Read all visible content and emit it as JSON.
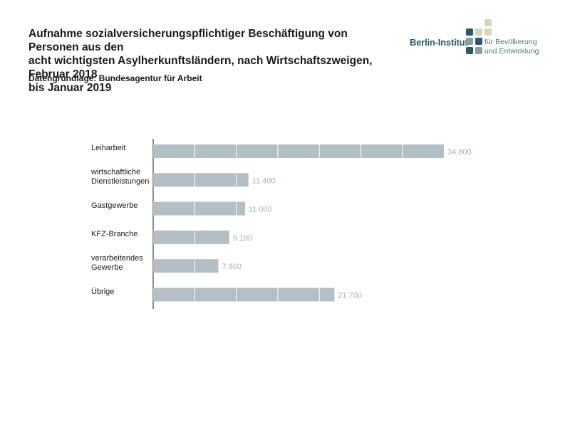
{
  "header": {
    "title_lines": [
      "Aufnahme sozialversicherungspflichtiger Beschäftigung von Personen aus den",
      "acht wichtigsten Asylherkunftsländern, nach Wirtschaftszweigen, Februar 2018",
      "bis Januar 2019"
    ],
    "subtitle": "Datengrundlage: Bundesagentur für Arbeit"
  },
  "logo": {
    "name": "Berlin-Institut",
    "tagline_lines": [
      "für Bevölkerung",
      "und Entwicklung"
    ],
    "colors": {
      "dark": "#2a5a66",
      "grey": "#8a9ea4",
      "light": "#d4d8b6"
    }
  },
  "chart_data": {
    "type": "bar",
    "orientation": "horizontal",
    "categories": [
      [
        "Leiharbeit"
      ],
      [
        "wirtschaftliche",
        "Dienstleistungen"
      ],
      [
        "Gastgewerbe"
      ],
      [
        "KFZ-Branche"
      ],
      [
        "verarbeitendes",
        "Gewerbe"
      ],
      [
        "Übrige"
      ]
    ],
    "values": [
      34800,
      11400,
      11000,
      9100,
      7800,
      21700
    ],
    "value_labels": [
      "34.800",
      "11.400",
      "11.000",
      "9.100",
      "7.800",
      "21.700"
    ],
    "xlim": [
      0,
      35000
    ],
    "grid": "vertical white lines inside bars",
    "bar_color": "#b3bfc4",
    "label_color": "#a3b3b9"
  }
}
